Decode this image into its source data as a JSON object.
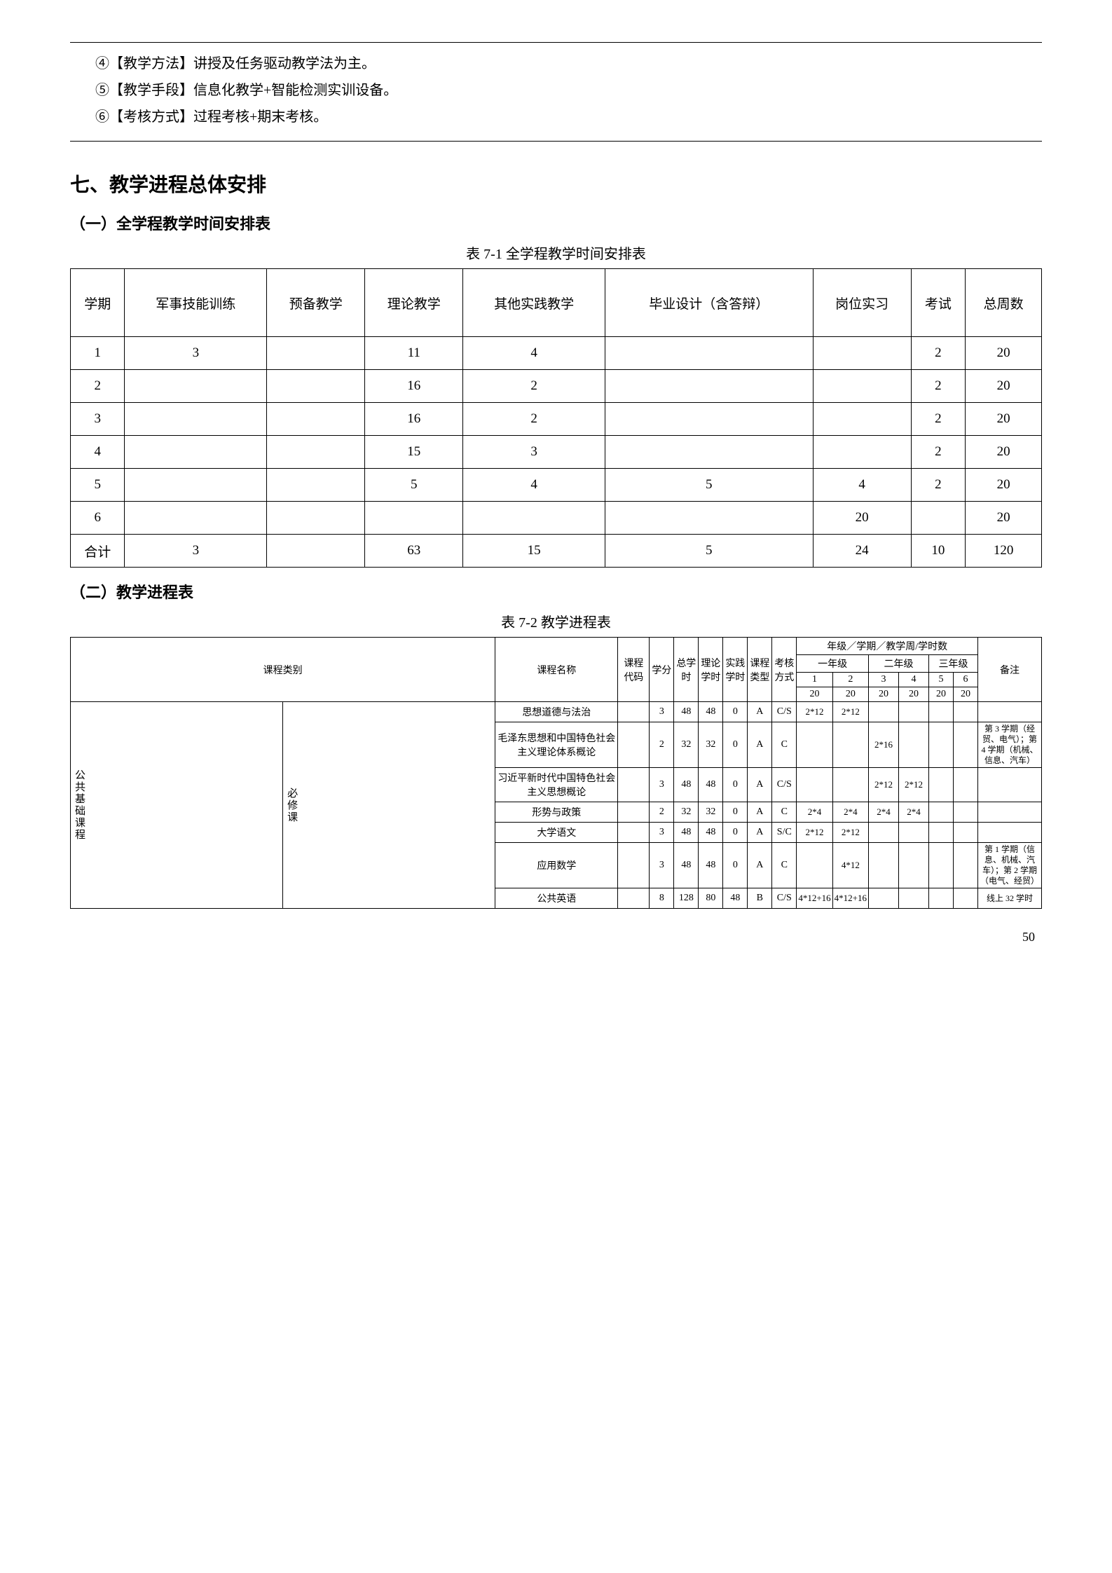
{
  "intro_box": {
    "line1": "④【教学方法】讲授及任务驱动教学法为主。",
    "line2": "⑤【教学手段】信息化教学+智能检测实训设备。",
    "line3": "⑥【考核方式】过程考核+期末考核。"
  },
  "section_title": "七、教学进程总体安排",
  "sub1_title": "（一）全学程教学时间安排表",
  "table1_caption": "表 7-1 全学程教学时间安排表",
  "table1": {
    "headers": [
      "学期",
      "军事技能训练",
      "预备教学",
      "理论教学",
      "其他实践教学",
      "毕业设计（含答辩）",
      "岗位实习",
      "考试",
      "总周数"
    ],
    "rows": [
      [
        "1",
        "3",
        "",
        "11",
        "4",
        "",
        "",
        "2",
        "20"
      ],
      [
        "2",
        "",
        "",
        "16",
        "2",
        "",
        "",
        "2",
        "20"
      ],
      [
        "3",
        "",
        "",
        "16",
        "2",
        "",
        "",
        "2",
        "20"
      ],
      [
        "4",
        "",
        "",
        "15",
        "3",
        "",
        "",
        "2",
        "20"
      ],
      [
        "5",
        "",
        "",
        "5",
        "4",
        "5",
        "4",
        "2",
        "20"
      ],
      [
        "6",
        "",
        "",
        "",
        "",
        "",
        "20",
        "",
        "20"
      ],
      [
        "合计",
        "3",
        "",
        "63",
        "15",
        "5",
        "24",
        "10",
        "120"
      ]
    ]
  },
  "sub2_title": "（二）教学进程表",
  "table2_caption": "表 7-2  教学进程表",
  "table2": {
    "top_header": {
      "c1": "课程类别",
      "c2": "课程名称",
      "c3": "课程代码",
      "c4": "学分",
      "c5": "总学时",
      "c6": "理论学时",
      "c7": "实践学时",
      "c8": "课程类型",
      "c9": "考核方式",
      "grade_header": "年级／学期／教学周/学时数",
      "y1": "一年级",
      "y2": "二年级",
      "y3": "三年级",
      "s1": "1",
      "s2": "2",
      "s3": "3",
      "s4": "4",
      "s5": "5",
      "s6": "6",
      "w": "20",
      "remark": "备注"
    },
    "category_group": "公共基础课程",
    "category_sub": "必修课",
    "rows": [
      {
        "name": "思想道德与法治",
        "code": "",
        "xf": "3",
        "zxs": "48",
        "ll": "48",
        "sj": "0",
        "lx": "A",
        "kh": "C/S",
        "s1": "2*12",
        "s2": "2*12",
        "s3": "",
        "s4": "",
        "s5": "",
        "s6": "",
        "bz": ""
      },
      {
        "name": "毛泽东思想和中国特色社会主义理论体系概论",
        "code": "",
        "xf": "2",
        "zxs": "32",
        "ll": "32",
        "sj": "0",
        "lx": "A",
        "kh": "C",
        "s1": "",
        "s2": "",
        "s3": "2*16",
        "s4": "",
        "s5": "",
        "s6": "",
        "bz": "第 3 学期（经贸、电气）；第 4 学期（机械、信息、汽车）"
      },
      {
        "name": "习近平新时代中国特色社会主义思想概论",
        "code": "",
        "xf": "3",
        "zxs": "48",
        "ll": "48",
        "sj": "0",
        "lx": "A",
        "kh": "C/S",
        "s1": "",
        "s2": "",
        "s3": "2*12",
        "s4": "2*12",
        "s5": "",
        "s6": "",
        "bz": ""
      },
      {
        "name": "形势与政策",
        "code": "",
        "xf": "2",
        "zxs": "32",
        "ll": "32",
        "sj": "0",
        "lx": "A",
        "kh": "C",
        "s1": "2*4",
        "s2": "2*4",
        "s3": "2*4",
        "s4": "2*4",
        "s5": "",
        "s6": "",
        "bz": ""
      },
      {
        "name": "大学语文",
        "code": "",
        "xf": "3",
        "zxs": "48",
        "ll": "48",
        "sj": "0",
        "lx": "A",
        "kh": "S/C",
        "s1": "2*12",
        "s2": "2*12",
        "s3": "",
        "s4": "",
        "s5": "",
        "s6": "",
        "bz": ""
      },
      {
        "name": "应用数学",
        "code": "",
        "xf": "3",
        "zxs": "48",
        "ll": "48",
        "sj": "0",
        "lx": "A",
        "kh": "C",
        "s1": "",
        "s2": "4*12",
        "s3": "",
        "s4": "",
        "s5": "",
        "s6": "",
        "bz": "第 1 学期（信息、机械、汽车）；第 2 学期（电气、经贸）"
      },
      {
        "name": "公共英语",
        "code": "",
        "xf": "8",
        "zxs": "128",
        "ll": "80",
        "sj": "48",
        "lx": "B",
        "kh": "C/S",
        "s1": "4*12+16",
        "s2": "4*12+16",
        "s3": "",
        "s4": "",
        "s5": "",
        "s6": "",
        "bz": "线上 32 学时"
      }
    ]
  },
  "page_number": "50"
}
